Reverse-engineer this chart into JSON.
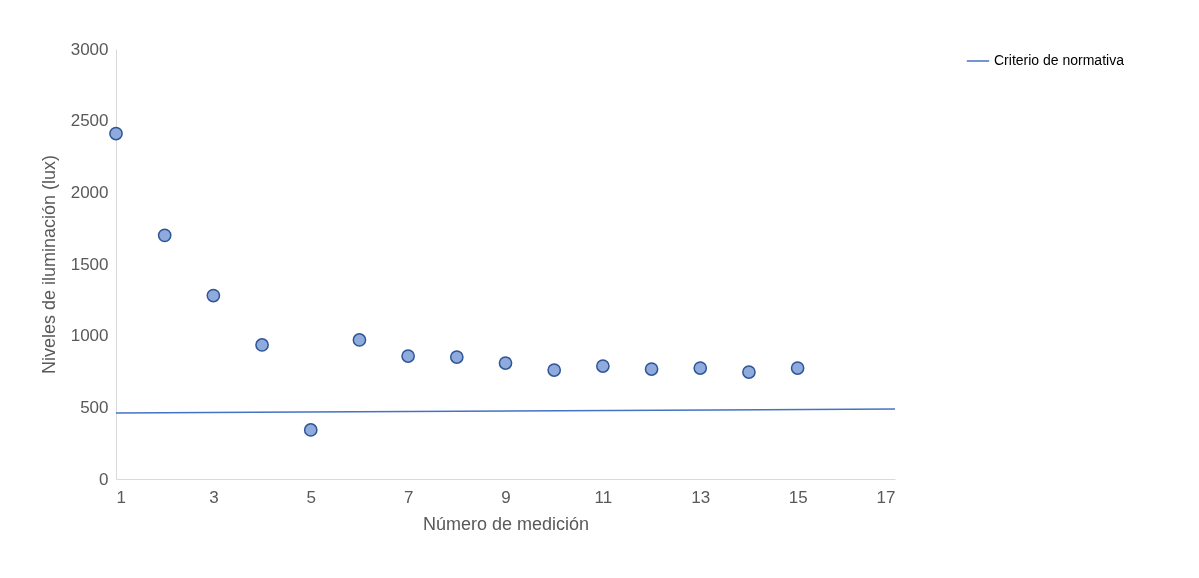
{
  "chart_data": {
    "type": "scatter",
    "xlabel": "Número de medición",
    "ylabel": "Niveles de iluminación (lux)",
    "xlim": [
      1,
      17
    ],
    "xticks": [
      1,
      3,
      5,
      7,
      9,
      11,
      13,
      15,
      17
    ],
    "ylim": [
      0,
      3000
    ],
    "yticks": [
      0,
      500,
      1000,
      1500,
      2000,
      2500,
      3000
    ],
    "grid": false,
    "legend": "right",
    "series": [
      {
        "marker": "circle",
        "color": "#8faadc",
        "x": [
          1,
          2,
          3,
          4,
          5,
          6,
          7,
          8,
          9,
          10,
          11,
          12,
          13,
          14,
          15
        ],
        "values": [
          2410,
          1700,
          1280,
          935,
          342,
          970,
          858,
          851,
          809,
          760,
          788,
          767,
          774,
          746,
          774
        ]
      },
      {
        "type": "line",
        "marker": "none",
        "name": "Criterio de normativa",
        "color": "#4472c4",
        "line_style": "solid",
        "x": [
          1,
          17
        ],
        "values": [
          460,
          488
        ]
      }
    ]
  }
}
